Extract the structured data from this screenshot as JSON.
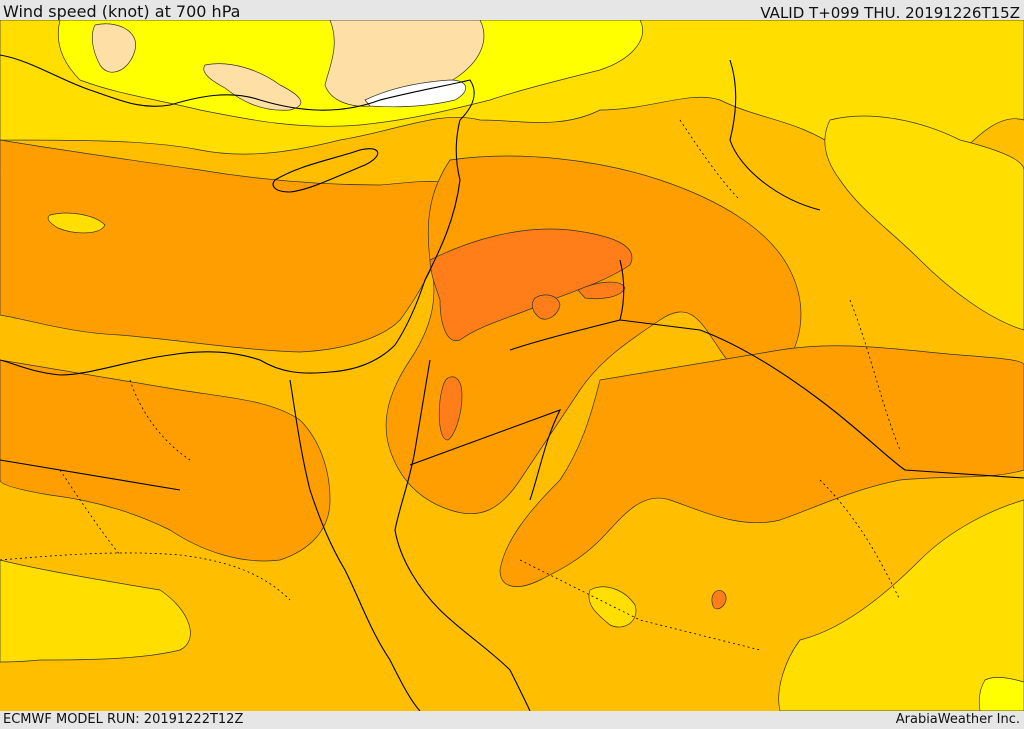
{
  "header": {
    "title": "Wind speed (knot) at 700 hPa",
    "valid_time": "VALID T+099 THU. 20191226T15Z"
  },
  "footer": {
    "model_run": "ECMWF MODEL RUN: 20191222T12Z",
    "credit": "ArabiaWeather Inc."
  },
  "colors": {
    "lightest": "#ffffff",
    "very_light": "#fedfa6",
    "light_yellow": "#ffff00",
    "yellow": "#ffde00",
    "gold": "#ffbf00",
    "orange": "#ff9e00",
    "dark_orange": "#ff7e1a",
    "border": "#000000"
  }
}
